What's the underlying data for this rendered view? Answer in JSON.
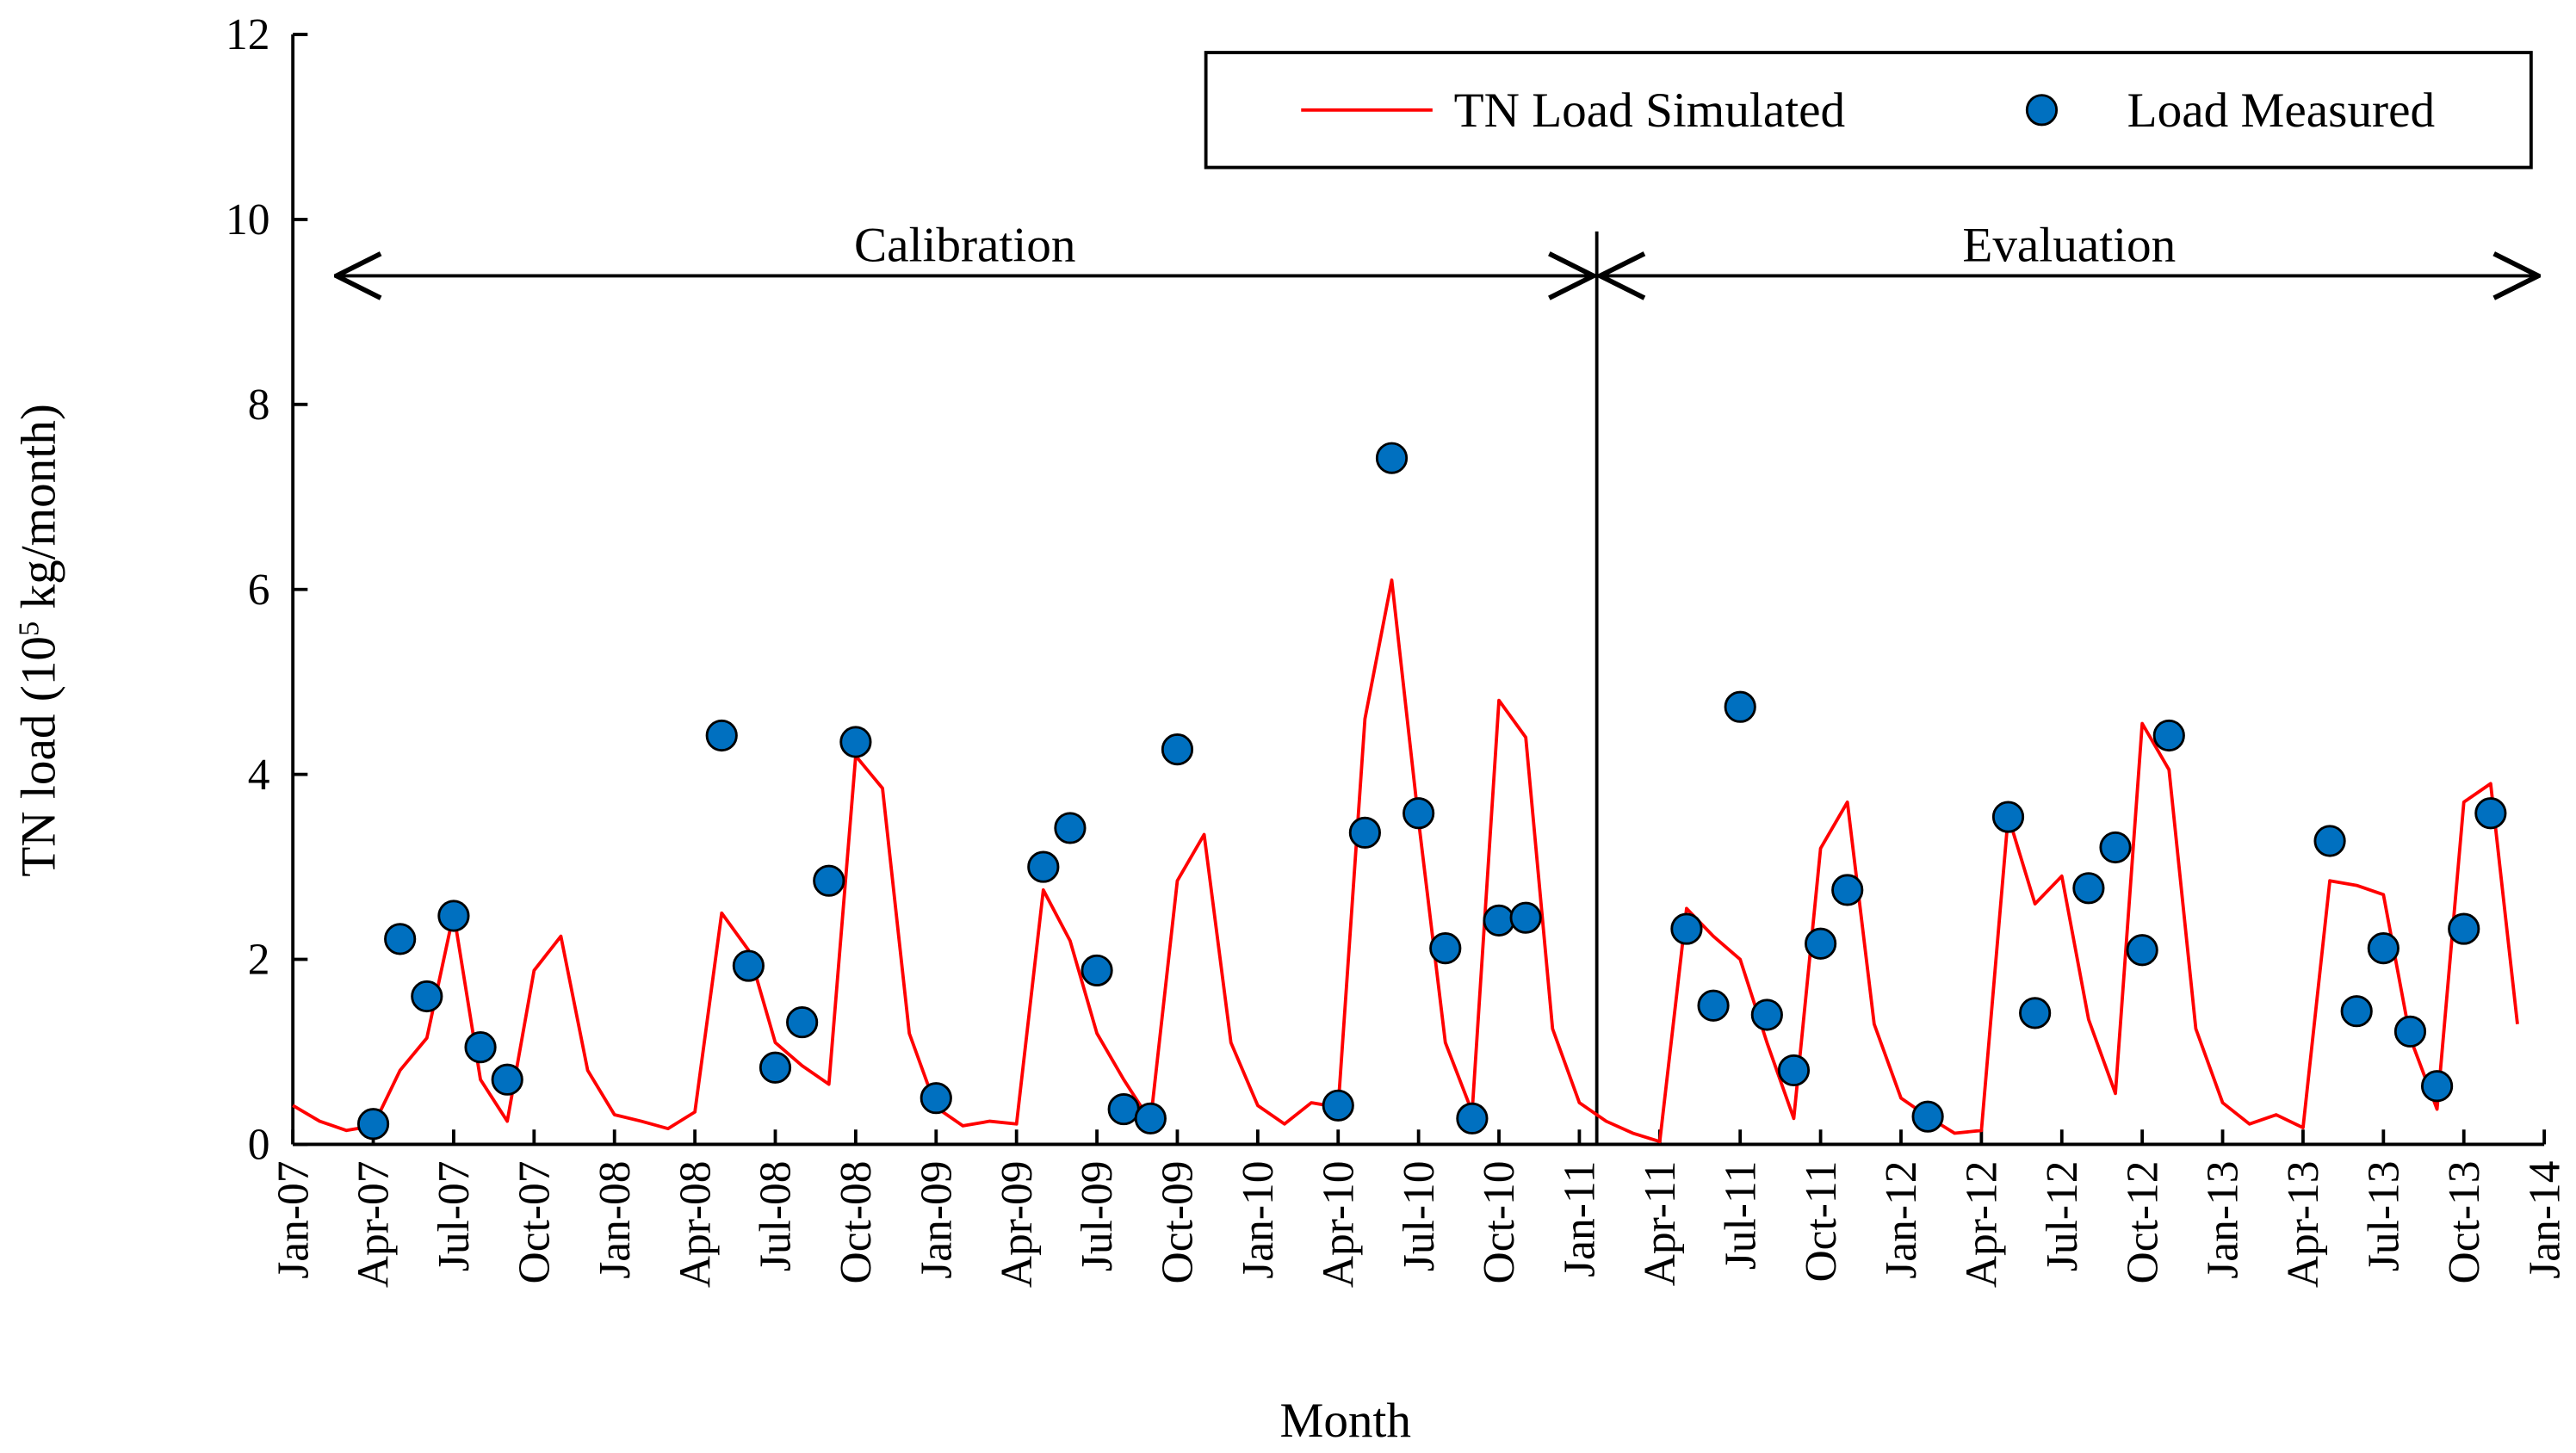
{
  "chart_data": {
    "type": "line",
    "title": "",
    "xlabel": "Month",
    "ylabel_prefix": "TN load (10",
    "ylabel_sup": "5",
    "ylabel_suffix": " kg/month)",
    "ylim": [
      0,
      12
    ],
    "yticks": [
      "0",
      "2",
      "4",
      "6",
      "8",
      "10",
      "12"
    ],
    "x_start": "Jan-07",
    "x_ticks": [
      "Jan-07",
      "Apr-07",
      "Jul-07",
      "Oct-07",
      "Jan-08",
      "Apr-08",
      "Jul-08",
      "Oct-08",
      "Jan-09",
      "Apr-09",
      "Jul-09",
      "Oct-09",
      "Jan-10",
      "Apr-10",
      "Jul-10",
      "Oct-10",
      "Jan-11",
      "Apr-11",
      "Jul-11",
      "Oct-11",
      "Jan-12",
      "Apr-12",
      "Jul-12",
      "Oct-12",
      "Jan-13",
      "Apr-13",
      "Jul-13",
      "Oct-13",
      "Jan-14"
    ],
    "grid": false,
    "legend_position": "top-right",
    "periods": [
      {
        "label": "Calibration",
        "from_month": 1.5,
        "to_month": 48.65
      },
      {
        "label": "Evaluation",
        "from_month": 48.65,
        "to_month": 83.9
      }
    ],
    "series": [
      {
        "name": "TN Load Simulated",
        "kind": "line",
        "color": "#ff0000",
        "month_index_start": 0,
        "values": [
          0.42,
          0.25,
          0.15,
          0.2,
          0.8,
          1.15,
          2.5,
          0.7,
          0.25,
          1.88,
          2.25,
          0.8,
          0.32,
          0.25,
          0.17,
          0.35,
          2.5,
          2.1,
          1.1,
          0.85,
          0.65,
          4.2,
          3.85,
          1.2,
          0.4,
          0.2,
          0.25,
          0.22,
          2.75,
          2.2,
          1.2,
          0.7,
          0.25,
          2.85,
          3.35,
          1.1,
          0.42,
          0.22,
          0.45,
          0.4,
          4.6,
          6.1,
          3.5,
          1.1,
          0.35,
          4.8,
          4.4,
          1.25,
          0.45,
          0.25,
          0.12,
          0.03,
          2.55,
          2.25,
          2.0,
          1.1,
          0.28,
          3.2,
          3.7,
          1.3,
          0.5,
          0.3,
          0.12,
          0.15,
          3.55,
          2.6,
          2.9,
          1.35,
          0.55,
          4.55,
          4.05,
          1.25,
          0.45,
          0.22,
          0.32,
          0.18,
          2.85,
          2.8,
          2.7,
          1.15,
          0.38,
          3.7,
          3.9,
          1.3
        ]
      },
      {
        "name": "Load Measured",
        "kind": "scatter",
        "color": "#0070c0",
        "points": [
          [
            3,
            0.22
          ],
          [
            4,
            2.22
          ],
          [
            5,
            1.6
          ],
          [
            6,
            2.47
          ],
          [
            7,
            1.05
          ],
          [
            8,
            0.7
          ],
          [
            16,
            4.42
          ],
          [
            17,
            1.93
          ],
          [
            18,
            0.83
          ],
          [
            19,
            1.32
          ],
          [
            20,
            2.85
          ],
          [
            21,
            4.35
          ],
          [
            24,
            0.5
          ],
          [
            28,
            3.0
          ],
          [
            29,
            3.42
          ],
          [
            30,
            1.88
          ],
          [
            31,
            0.38
          ],
          [
            32,
            0.28
          ],
          [
            33,
            4.27
          ],
          [
            39,
            0.42
          ],
          [
            40,
            3.37
          ],
          [
            41,
            7.42
          ],
          [
            42,
            3.58
          ],
          [
            43,
            2.12
          ],
          [
            44,
            0.28
          ],
          [
            45,
            2.42
          ],
          [
            46,
            2.45
          ],
          [
            52,
            2.33
          ],
          [
            53,
            1.5
          ],
          [
            54,
            4.73
          ],
          [
            55,
            1.4
          ],
          [
            56,
            0.8
          ],
          [
            57,
            2.17
          ],
          [
            58,
            2.75
          ],
          [
            61,
            0.3
          ],
          [
            64,
            3.54
          ],
          [
            65,
            1.42
          ],
          [
            67,
            2.77
          ],
          [
            68,
            3.21
          ],
          [
            69,
            2.1
          ],
          [
            70,
            4.42
          ],
          [
            76,
            3.28
          ],
          [
            77,
            1.44
          ],
          [
            78,
            2.12
          ],
          [
            79,
            1.22
          ],
          [
            80,
            0.63
          ],
          [
            81,
            2.33
          ],
          [
            82,
            3.58
          ]
        ]
      }
    ]
  }
}
